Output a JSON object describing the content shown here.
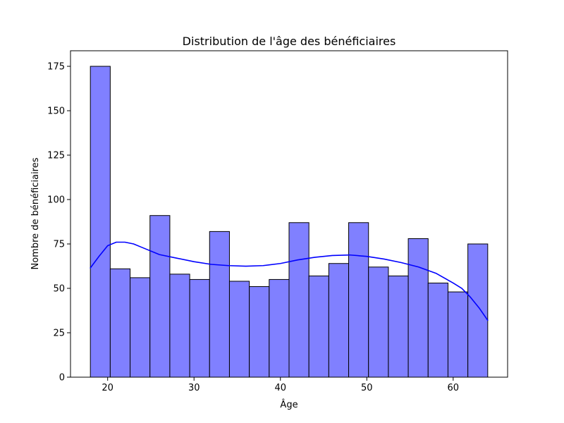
{
  "chart_data": {
    "type": "bar",
    "title": "Distribution de l'âge des bénéficiaires",
    "xlabel": "Âge",
    "ylabel": "Nombre de bénéficiaires",
    "xlim": [
      15.7,
      66.3
    ],
    "ylim": [
      0,
      183.75
    ],
    "xticks": [
      20,
      30,
      40,
      50,
      60
    ],
    "yticks": [
      0,
      25,
      50,
      75,
      100,
      125,
      150,
      175
    ],
    "bin_edges": [
      18,
      20.3,
      22.6,
      24.9,
      27.2,
      29.5,
      31.8,
      34.1,
      36.4,
      38.7,
      41,
      43.3,
      45.6,
      47.9,
      50.2,
      52.5,
      54.8,
      57.1,
      59.4,
      61.7,
      64
    ],
    "values": [
      175,
      61,
      56,
      91,
      58,
      55,
      82,
      54,
      51,
      55,
      87,
      57,
      64,
      87,
      62,
      57,
      78,
      53,
      48,
      75
    ],
    "bar_color": "#8080ff",
    "bar_edge_color": "#000000",
    "kde_color": "#0000ff",
    "kde": {
      "x": [
        18,
        19,
        20,
        21,
        22,
        23,
        24,
        26,
        28,
        30,
        32,
        34,
        36,
        38,
        40,
        42,
        44,
        46,
        48,
        50,
        52,
        54,
        56,
        58,
        60,
        61,
        62,
        63,
        64
      ],
      "y": [
        61.5,
        68,
        74,
        76,
        76,
        75,
        73,
        69,
        67,
        65,
        63.5,
        62.8,
        62.5,
        62.8,
        64,
        66,
        67.5,
        68.5,
        68.8,
        68,
        66.5,
        64.5,
        62,
        58.5,
        53,
        50,
        45,
        39,
        32
      ]
    },
    "grid": false,
    "legend": false
  }
}
